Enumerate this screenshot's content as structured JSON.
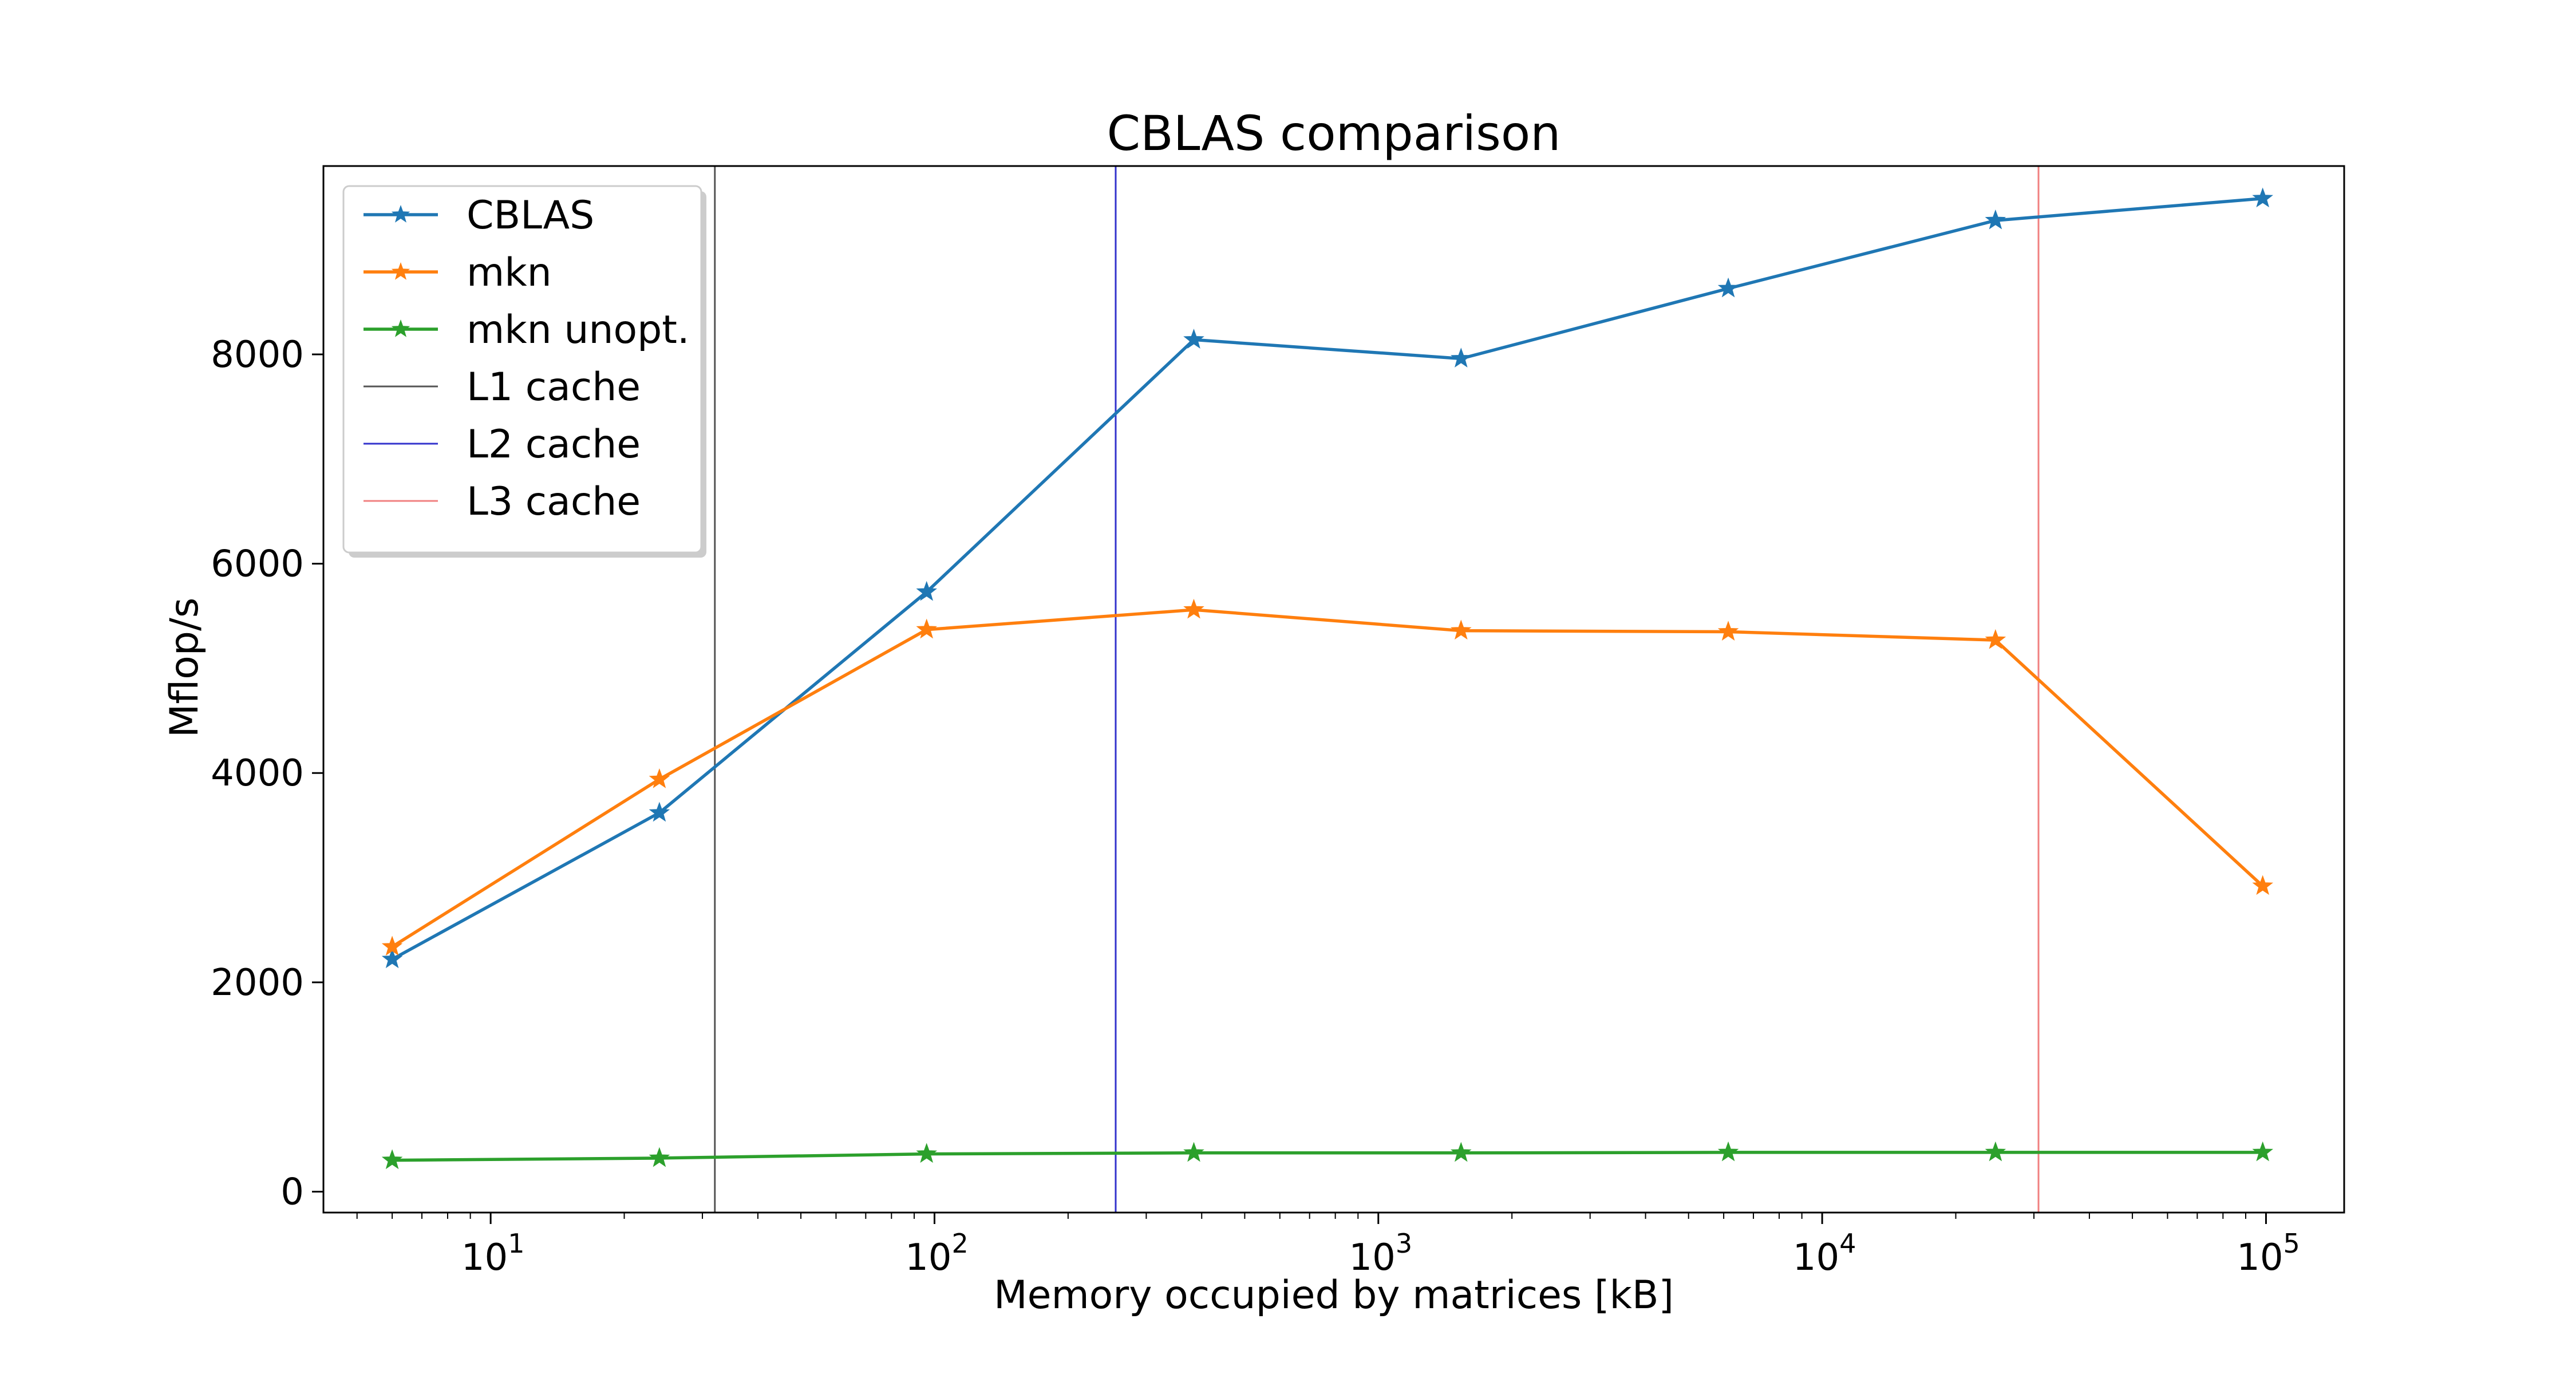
{
  "chart_data": {
    "type": "line",
    "title": "CBLAS comparison",
    "xlabel": "Memory occupied by matrices [kB]",
    "ylabel": "Mflop/s",
    "x_scale": "log",
    "xlim": [
      4.2,
      150000
    ],
    "ylim": [
      -200,
      9800
    ],
    "grid": false,
    "legend_position": "top-left",
    "x": [
      6,
      24,
      96,
      384,
      1536,
      6144,
      24576,
      98304
    ],
    "series": [
      {
        "name": "CBLAS",
        "color": "#1f77b4",
        "marker": "star",
        "values": [
          2220,
          3620,
          5730,
          8140,
          7960,
          8630,
          9280,
          9490
        ]
      },
      {
        "name": "mkn",
        "color": "#ff7f0e",
        "marker": "star",
        "values": [
          2340,
          3940,
          5370,
          5560,
          5360,
          5350,
          5270,
          2920
        ]
      },
      {
        "name": "mkn unopt.",
        "color": "#2ca02c",
        "marker": "star",
        "values": [
          300,
          320,
          360,
          370,
          370,
          375,
          375,
          375
        ]
      }
    ],
    "vlines": [
      {
        "name": "L1 cache",
        "x": 32,
        "color": "#555555"
      },
      {
        "name": "L2 cache",
        "x": 256,
        "color": "#3333cc"
      },
      {
        "name": "L3 cache",
        "x": 30720,
        "color": "#f08080"
      }
    ],
    "y_ticks": [
      {
        "value": 0,
        "label": "0"
      },
      {
        "value": 2000,
        "label": "2000"
      },
      {
        "value": 4000,
        "label": "4000"
      },
      {
        "value": 6000,
        "label": "6000"
      },
      {
        "value": 8000,
        "label": "8000"
      }
    ],
    "x_ticks": [
      {
        "value": 10,
        "base": "10",
        "exp": "1"
      },
      {
        "value": 100,
        "base": "10",
        "exp": "2"
      },
      {
        "value": 1000,
        "base": "10",
        "exp": "3"
      },
      {
        "value": 10000,
        "base": "10",
        "exp": "4"
      },
      {
        "value": 100000,
        "base": "10",
        "exp": "5"
      }
    ]
  }
}
